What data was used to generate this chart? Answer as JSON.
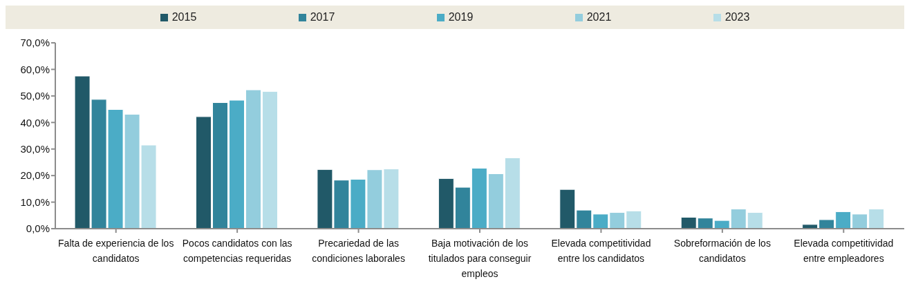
{
  "chart_data": {
    "type": "bar",
    "categories": [
      "Falta de experiencia de los candidatos",
      "Pocos candidatos con las competencias requeridas",
      "Precariedad de las condiciones laborales",
      "Baja motivación de los titulados para conseguir empleos",
      "Elevada competitividad entre los candidatos",
      "Sobreformación de los candidatos",
      "Elevada competitividad entre empleadores"
    ],
    "series": [
      {
        "name": "2015",
        "color": "#215968",
        "values": [
          57.5,
          42.2,
          22.3,
          18.9,
          14.8,
          4.3,
          1.6
        ]
      },
      {
        "name": "2017",
        "color": "#31849b",
        "values": [
          48.7,
          47.5,
          18.3,
          15.6,
          7.0,
          4.0,
          3.4
        ]
      },
      {
        "name": "2019",
        "color": "#4bacc6",
        "values": [
          44.9,
          48.4,
          18.6,
          22.8,
          5.5,
          3.1,
          6.4
        ]
      },
      {
        "name": "2021",
        "color": "#93cddd",
        "values": [
          43.1,
          52.3,
          22.2,
          20.7,
          6.1,
          7.4,
          5.5
        ]
      },
      {
        "name": "2023",
        "color": "#b7dee8",
        "values": [
          31.5,
          51.7,
          22.5,
          26.7,
          6.7,
          6.1,
          7.4
        ]
      }
    ],
    "ylim": [
      0,
      70
    ],
    "yticks": [
      {
        "value": 0,
        "label": "0,0%"
      },
      {
        "value": 10,
        "label": "10,0%"
      },
      {
        "value": 20,
        "label": "20,0%"
      },
      {
        "value": 30,
        "label": "30,0%"
      },
      {
        "value": 40,
        "label": "40,0%"
      },
      {
        "value": 50,
        "label": "50,0%"
      },
      {
        "value": 60,
        "label": "60,0%"
      },
      {
        "value": 70,
        "label": "70,0%"
      }
    ],
    "grid": false,
    "legend": "top"
  }
}
